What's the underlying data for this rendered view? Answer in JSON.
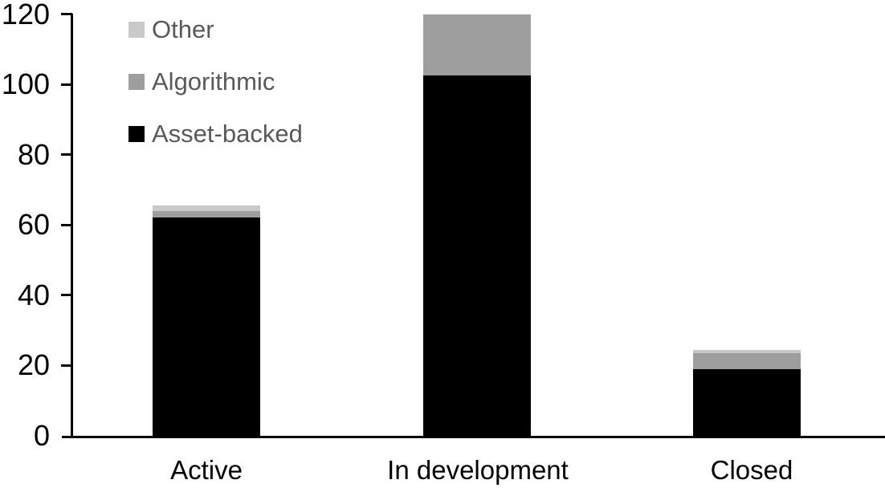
{
  "chart": {
    "background_color": "#ffffff",
    "axis_color": "#000000",
    "tick_label_color": "#000000",
    "category_label_color": "#000000",
    "legend_text_color": "#595959"
  },
  "chart_data": {
    "type": "bar",
    "stacked": true,
    "title": "",
    "xlabel": "",
    "ylabel": "",
    "categories": [
      "Active",
      "In development",
      "Closed"
    ],
    "series": [
      {
        "name": "Asset-backed",
        "color": "#000000",
        "values": [
          62,
          102.5,
          19
        ]
      },
      {
        "name": "Algorithmic",
        "color": "#9e9e9e",
        "values": [
          2,
          17.5,
          4.5
        ]
      },
      {
        "name": "Other",
        "color": "#c9c9c9",
        "values": [
          1.5,
          0,
          1
        ]
      }
    ],
    "ylim": [
      0,
      120
    ],
    "yticks": [
      0,
      20,
      40,
      60,
      80,
      100,
      120
    ],
    "grid": false,
    "legend_position": "top-left",
    "legend_order_top_to_bottom": [
      "Other",
      "Algorithmic",
      "Asset-backed"
    ]
  }
}
